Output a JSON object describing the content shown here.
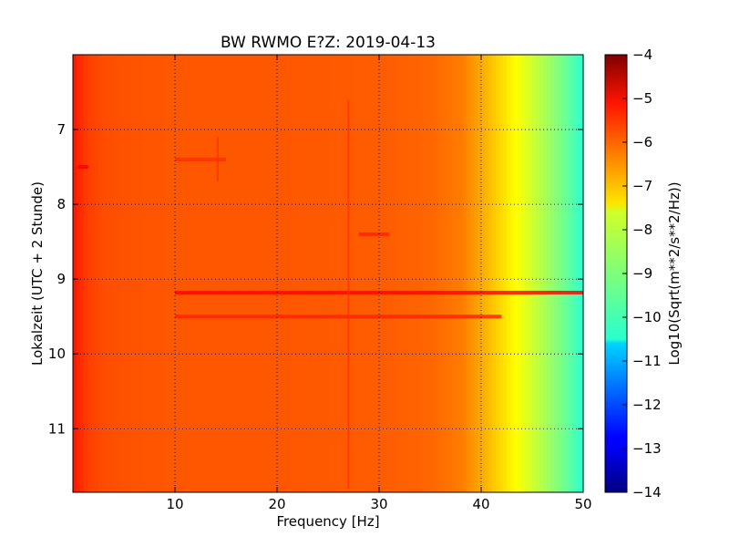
{
  "chart_data": {
    "type": "heatmap",
    "title": "BW RWMO E?Z: 2019-04-13",
    "xlabel": "Frequency [Hz]",
    "ylabel": "Lokalzeit (UTC + 2 Stunde)",
    "xlim": [
      0,
      50
    ],
    "ylim": [
      6.0,
      11.85
    ],
    "y_inverted": true,
    "x_ticks": [
      10,
      20,
      30,
      40,
      50
    ],
    "x_tick_labels": [
      "10",
      "20",
      "30",
      "40",
      "50"
    ],
    "y_ticks": [
      7,
      8,
      9,
      10,
      11
    ],
    "y_tick_labels": [
      "7",
      "8",
      "9",
      "10",
      "11"
    ],
    "grid": true,
    "colormap": "jet",
    "colorbar": {
      "label": "Log10(Sqrt(m**2/s**2/Hz))",
      "range": [
        -14,
        -4
      ],
      "ticks": [
        -4,
        -5,
        -6,
        -7,
        -8,
        -9,
        -10,
        -11,
        -12,
        -13,
        -14
      ],
      "tick_labels": [
        "−4",
        "−5",
        "−6",
        "−7",
        "−8",
        "−9",
        "−10",
        "−11",
        "−12",
        "−13",
        "−14"
      ]
    },
    "spectral_profile": {
      "frequency_hz": [
        0,
        0.5,
        1.5,
        3,
        5,
        10,
        20,
        30,
        35,
        38,
        40,
        42,
        44,
        46,
        48,
        50
      ],
      "log_amplitude": [
        -5.4,
        -5.6,
        -5.85,
        -6.0,
        -6.05,
        -6.1,
        -6.1,
        -6.15,
        -6.25,
        -6.45,
        -6.9,
        -7.4,
        -7.9,
        -8.5,
        -9.1,
        -9.8
      ]
    },
    "horizontal_bands": [
      {
        "time": 9.18,
        "fmin": 10,
        "fmax": 50,
        "level": -5.3
      },
      {
        "time": 9.5,
        "fmin": 10,
        "fmax": 42,
        "level": -5.6
      },
      {
        "time": 7.4,
        "fmin": 10,
        "fmax": 15,
        "level": -5.7
      },
      {
        "time": 8.4,
        "fmin": 28,
        "fmax": 31,
        "level": -5.6
      },
      {
        "time": 7.5,
        "fmin": 0.5,
        "fmax": 1.5,
        "level": -5.2
      }
    ],
    "vertical_lines": [
      {
        "frequency": 27,
        "tmin": 6.6,
        "tmax": 11.8,
        "level": -5.7
      },
      {
        "frequency": 14.2,
        "tmin": 7.1,
        "tmax": 7.7,
        "level": -5.7
      }
    ]
  }
}
